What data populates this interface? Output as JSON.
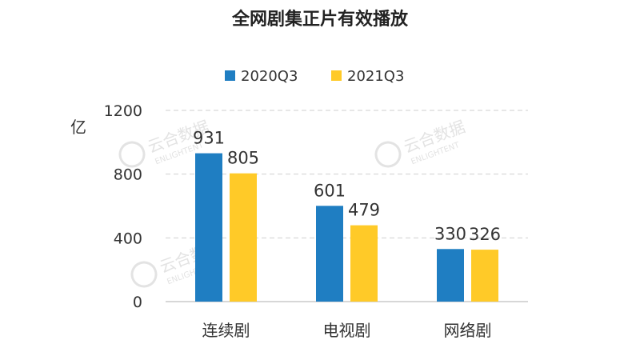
{
  "chart_data": {
    "type": "bar",
    "title": "全网剧集正片有效播放",
    "ylabel": "亿",
    "categories": [
      "连续剧",
      "电视剧",
      "网络剧"
    ],
    "series": [
      {
        "name": "2020Q3",
        "values": [
          931,
          601,
          330
        ]
      },
      {
        "name": "2021Q3",
        "values": [
          805,
          479,
          326
        ]
      }
    ],
    "ylim": [
      0,
      1200
    ],
    "yticks": [
      "0",
      "400",
      "800",
      "1200"
    ],
    "grid": true,
    "legend_position": "top-center",
    "colors": {
      "2020Q3": "#1F7EC2",
      "2021Q3": "#FFCA28"
    }
  },
  "watermark": {
    "cn": "云合数据",
    "en": "ENLIGHTENT"
  }
}
